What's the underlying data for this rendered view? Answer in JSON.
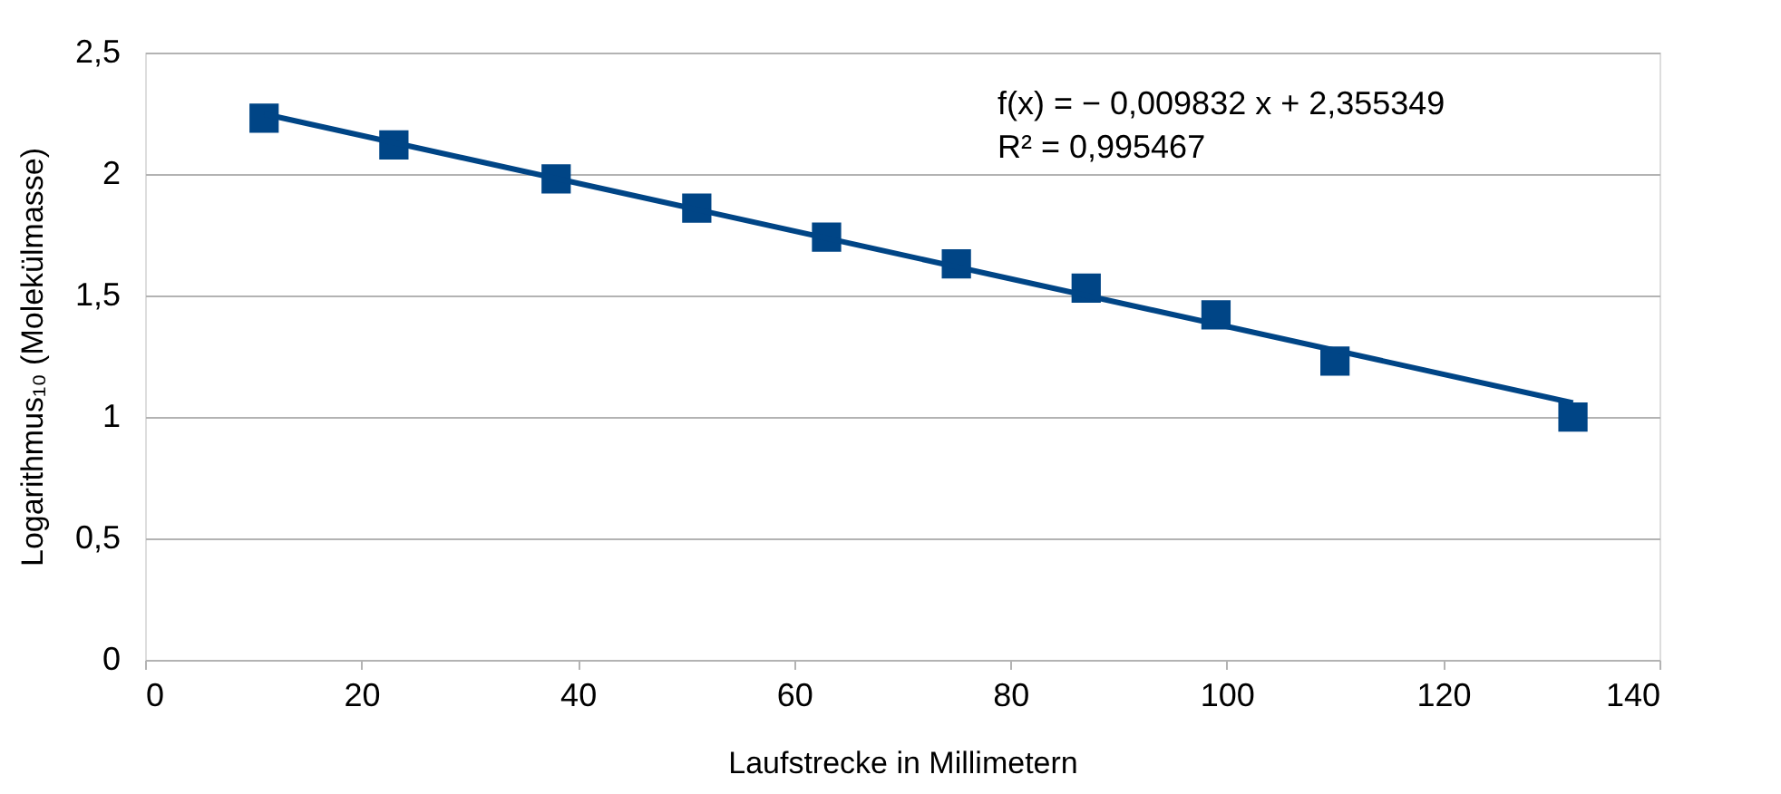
{
  "chart_data": {
    "type": "scatter",
    "xlabel": "Laufstrecke in Millimetern",
    "ylabel": "Logarithmus₁₀ (Molekülmasse)",
    "xlim": [
      0,
      140
    ],
    "xticks": [
      0,
      20,
      40,
      60,
      80,
      100,
      120,
      140
    ],
    "ylim": [
      0,
      2.5
    ],
    "yticks": [
      0,
      {
        "value": 0.5,
        "label": "0,5"
      },
      1,
      {
        "value": 1.5,
        "label": "1,5"
      },
      2,
      {
        "value": 2.5,
        "label": "2,5"
      }
    ],
    "grid": "y",
    "annotations": [
      "f(x) = − 0,009832 x + 2,355349",
      "R² = 0,995467"
    ],
    "series": [
      {
        "marker": "square",
        "color": "#004586",
        "x": [
          11,
          23,
          38,
          51,
          63,
          75,
          87,
          99,
          110,
          132
        ],
        "values": [
          2.23,
          2.12,
          1.98,
          1.86,
          1.74,
          1.63,
          1.53,
          1.42,
          1.23,
          1.0
        ]
      },
      {
        "type": "line",
        "marker": "none",
        "color": "#004586",
        "x": [
          11,
          132
        ],
        "values": [
          2.247,
          1.058
        ]
      }
    ]
  }
}
